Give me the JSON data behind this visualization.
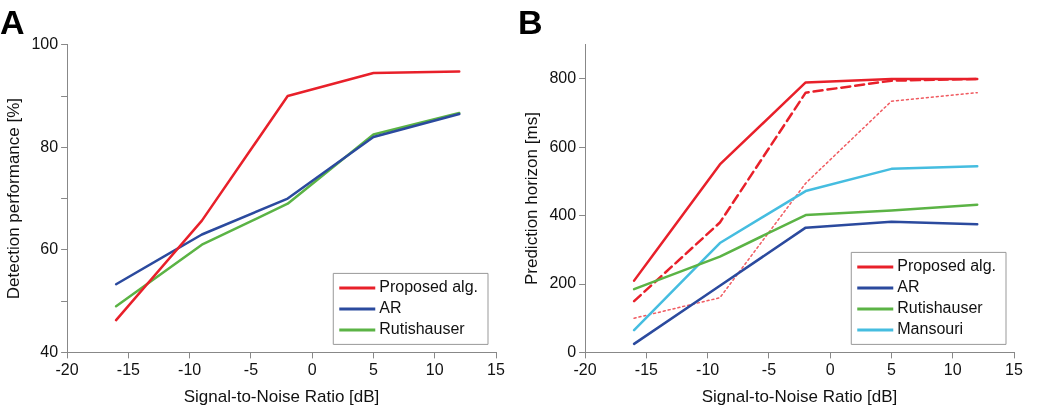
{
  "chart_data": [
    {
      "type": "line",
      "title": "A",
      "xlabel": "Signal-to-Noise Ratio [dB]",
      "ylabel": "Detection performance [%]",
      "x": [
        -16,
        -9,
        -2,
        5,
        12
      ],
      "series": [
        {
          "name": "Proposed alg.",
          "color": "#e8202a",
          "values": [
            46.3,
            65.7,
            90,
            94.5,
            94.8
          ]
        },
        {
          "name": "AR",
          "color": "#2b4a9e",
          "values": [
            53.3,
            63,
            70,
            82,
            86.5
          ]
        },
        {
          "name": "Rutishauser",
          "color": "#5bb345",
          "values": [
            49,
            61,
            69,
            82.5,
            86.7
          ]
        }
      ],
      "xlim": [
        -20,
        15
      ],
      "xticks": [
        -20,
        -15,
        -10,
        -5,
        0,
        5,
        10,
        15
      ],
      "ylim": [
        40,
        100
      ],
      "yticks": [
        40,
        {
          "value": 50,
          "label": null
        },
        60,
        {
          "value": 70,
          "label": null
        },
        80,
        {
          "value": 90,
          "label": null
        },
        100
      ],
      "legend": "bottom right",
      "grid": false,
      "marker": "none",
      "line_style": "solid"
    },
    {
      "type": "line",
      "title": "B",
      "xlabel": "Signal-to-Noise Ratio [dB]",
      "ylabel": "Prediction horizon [ms]",
      "x": [
        -16,
        -9,
        -2,
        5,
        12
      ],
      "series": [
        {
          "name": "Proposed alg.",
          "color": "#e8202a",
          "values": [
            210,
            550,
            790,
            800,
            800
          ]
        },
        {
          "name": "AR",
          "color": "#2b4a9e",
          "values": [
            25,
            195,
            365,
            382,
            375
          ]
        },
        {
          "name": "Rutishauser",
          "color": "#5bb345",
          "values": [
            185,
            280,
            402,
            415,
            432
          ]
        },
        {
          "name": "Mansouri",
          "color": "#45bde0",
          "values": [
            65,
            320,
            472,
            537,
            545
          ]
        },
        {
          "color": "#e8202a",
          "line_style": "dashed",
          "values": [
            150,
            380,
            760,
            795,
            800
          ]
        },
        {
          "color": "#f05a60",
          "line_style": "dotted",
          "values": [
            100,
            160,
            495,
            735,
            760
          ]
        }
      ],
      "xlim": [
        -20,
        15
      ],
      "xticks": [
        -20,
        -15,
        -10,
        -5,
        0,
        5,
        10,
        15
      ],
      "ylim": [
        0,
        900
      ],
      "yticks": [
        0,
        200,
        400,
        600,
        800
      ],
      "legend": "bottom right",
      "grid": false,
      "marker": "none",
      "line_style": "solid"
    }
  ]
}
